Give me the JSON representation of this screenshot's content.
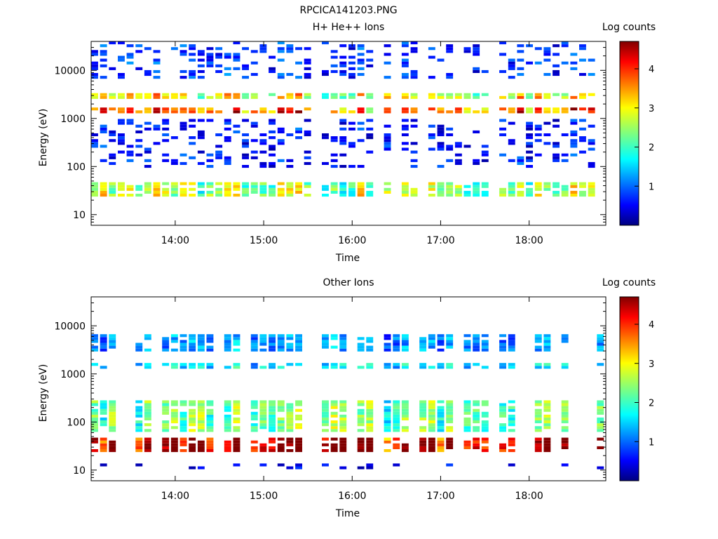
{
  "figure_title": "RPCICA141203.PNG",
  "chart_data": [
    {
      "type": "heatmap",
      "title": "H+ He++ Ions",
      "xlabel": "Time",
      "ylabel": "Energy (eV)",
      "y_scale": "log",
      "ylim": [
        6,
        40000
      ],
      "xlim": [
        "13:03",
        "18:52"
      ],
      "x_ticks": [
        "14:00",
        "15:00",
        "16:00",
        "17:00",
        "18:00"
      ],
      "y_ticks": [
        "10",
        "100",
        "1000",
        "10000"
      ],
      "colorbar": {
        "label": "Log counts",
        "range": [
          0,
          4.7
        ],
        "ticks": [
          "1",
          "2",
          "3",
          "4"
        ]
      },
      "grid": false,
      "bands_approx": [
        {
          "energy_eV": [
            1300,
            1700
          ],
          "log_counts": 3.6
        },
        {
          "energy_eV": [
            2600,
            3500
          ],
          "log_counts": 2.8
        },
        {
          "energy_eV": [
            25,
            50
          ],
          "log_counts": 2.5
        },
        {
          "energy_eV": [
            7000,
            40000
          ],
          "log_counts": 0.8
        },
        {
          "energy_eV": [
            100,
            1000
          ],
          "log_counts": 0.7
        }
      ]
    },
    {
      "type": "heatmap",
      "title": "Other Ions",
      "xlabel": "Time",
      "ylabel": "Energy (eV)",
      "y_scale": "log",
      "ylim": [
        6,
        40000
      ],
      "xlim": [
        "13:03",
        "18:52"
      ],
      "x_ticks": [
        "14:00",
        "15:00",
        "16:00",
        "17:00",
        "18:00"
      ],
      "y_ticks": [
        "10",
        "100",
        "1000",
        "10000"
      ],
      "colorbar": {
        "label": "Log counts",
        "range": [
          0,
          4.7
        ],
        "ticks": [
          "1",
          "2",
          "3",
          "4"
        ]
      },
      "grid": false,
      "bands_approx": [
        {
          "energy_eV": [
            25,
            50
          ],
          "log_counts": 4.3
        },
        {
          "energy_eV": [
            60,
            300
          ],
          "log_counts": 2.2
        },
        {
          "energy_eV": [
            1300,
            1700
          ],
          "log_counts": 1.6
        },
        {
          "energy_eV": [
            2800,
            7000
          ],
          "log_counts": 1.2
        },
        {
          "energy_eV": [
            10,
            13
          ],
          "log_counts": 0.5
        }
      ]
    }
  ]
}
